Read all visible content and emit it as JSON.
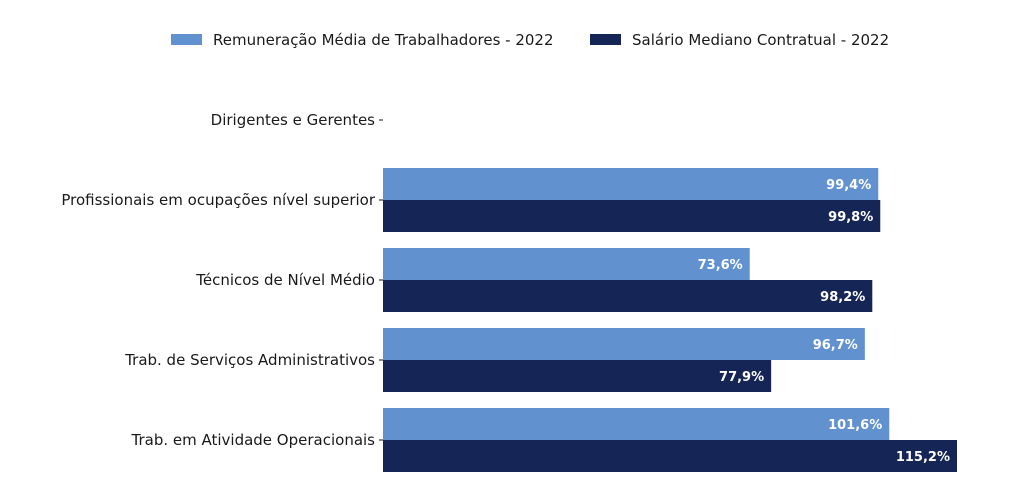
{
  "chart_data": {
    "type": "bar",
    "orientation": "horizontal",
    "categories": [
      "Dirigentes e Gerentes",
      "Profissionais em ocupações nível superior",
      "Técnicos de Nível Médio",
      "Trab. de Serviços Administrativos",
      "Trab. em Atividade Operacionais"
    ],
    "series": [
      {
        "name": "Remuneração Média de Trabalhadores - 2022",
        "color": "#6191cf",
        "values": [
          null,
          99.4,
          73.6,
          96.7,
          101.6
        ],
        "labels": [
          "",
          "99,4%",
          "73,6%",
          "96,7%",
          "101,6%"
        ]
      },
      {
        "name": "Salário Mediano Contratual - 2022",
        "color": "#152555",
        "values": [
          null,
          99.8,
          98.2,
          77.9,
          115.2
        ],
        "labels": [
          "",
          "99,8%",
          "98,2%",
          "77,9%",
          "115,2%"
        ]
      }
    ],
    "title": "",
    "xlabel": "",
    "ylabel": "",
    "xlim": [
      0,
      115.2
    ],
    "grid": false,
    "legend_position": "top",
    "unit": "%"
  }
}
